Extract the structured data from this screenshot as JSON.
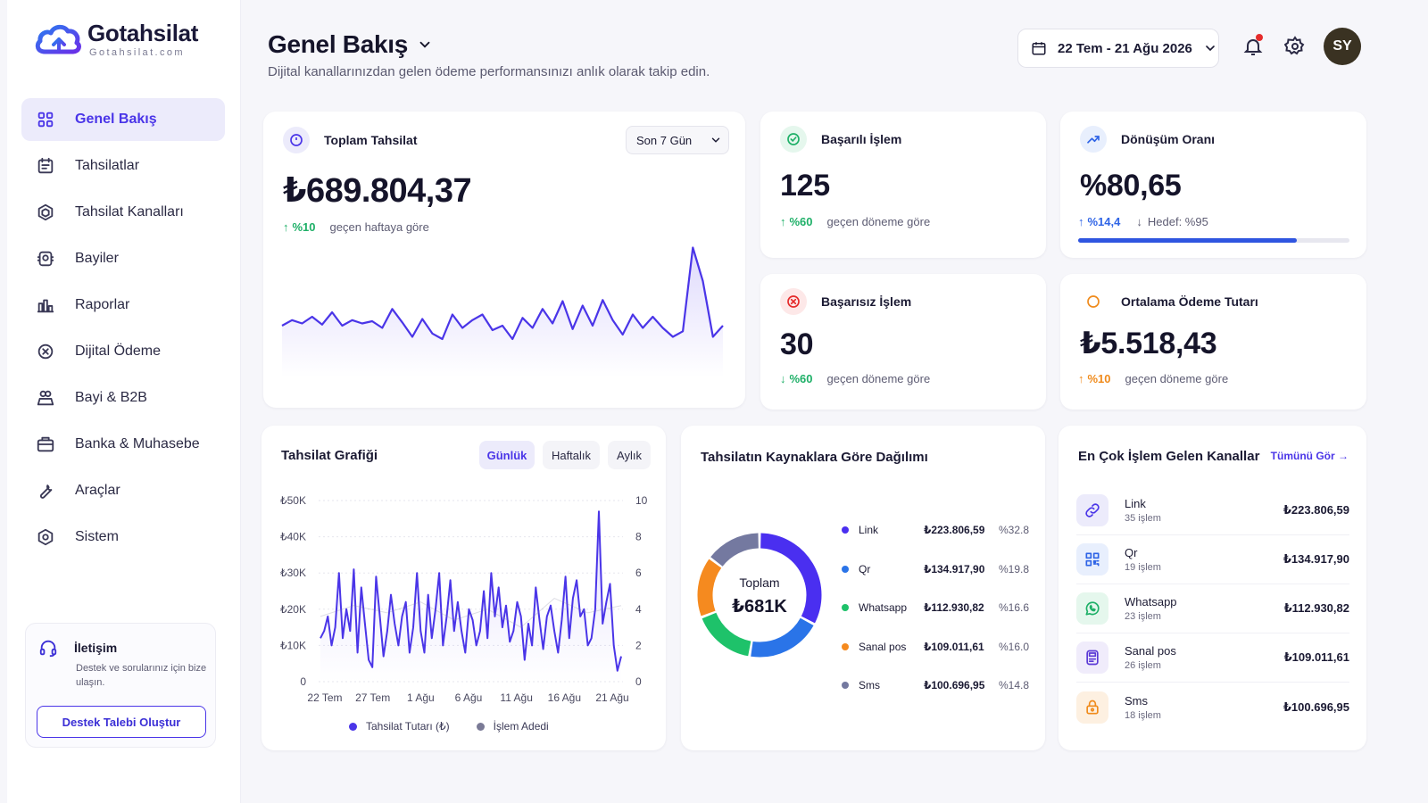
{
  "brand": {
    "name": "Gotahsilat",
    "domain": "Gotahsilat.com"
  },
  "sidebar": {
    "items": [
      {
        "label": "Genel Bakış",
        "icon": "grid-icon",
        "active": true
      },
      {
        "label": "Tahsilatlar",
        "icon": "receipt-icon",
        "active": false
      },
      {
        "label": "Tahsilat Kanalları",
        "icon": "channels-icon",
        "active": false
      },
      {
        "label": "Bayiler",
        "icon": "dealers-icon",
        "active": false
      },
      {
        "label": "Raporlar",
        "icon": "reports-icon",
        "active": false
      },
      {
        "label": "Dijital Ödeme",
        "icon": "digital-payment-icon",
        "active": false
      },
      {
        "label": "Bayi & B2B",
        "icon": "b2b-icon",
        "active": false
      },
      {
        "label": "Banka & Muhasebe",
        "icon": "bank-icon",
        "active": false
      },
      {
        "label": "Araçlar",
        "icon": "wrench-icon",
        "active": false
      },
      {
        "label": "Sistem",
        "icon": "system-icon",
        "active": false
      }
    ],
    "support": {
      "title": "İletişim",
      "desc": "Destek ve sorularınız için bize ulaşın.",
      "button": "Destek Talebi Oluştur"
    }
  },
  "header": {
    "title": "Genel Bakış",
    "subtitle": "Dijital kanallarınızdan gelen ödeme performansınızı anlık olarak takip edin.",
    "date_range": "22 Tem - 21 Ağu 2026",
    "avatar": "SY"
  },
  "total": {
    "title": "Toplam Tahsilat",
    "period": "Son 7 Gün",
    "value": "₺689.804,37",
    "delta": "%10",
    "note": "geçen haftaya göre",
    "spark": [
      40,
      45,
      42,
      48,
      41,
      52,
      40,
      45,
      42,
      44,
      38,
      55,
      43,
      30,
      46,
      33,
      28,
      50,
      38,
      45,
      50,
      36,
      40,
      28,
      47,
      38,
      55,
      42,
      62,
      37,
      58,
      40,
      63,
      45,
      32,
      50,
      38,
      48,
      38,
      30,
      35,
      110,
      80,
      30,
      40
    ]
  },
  "kpis": {
    "success": {
      "title": "Başarılı İşlem",
      "value": "125",
      "delta": "%60",
      "note": "geçen döneme göre",
      "color": "#1fb068"
    },
    "failed": {
      "title": "Başarısız İşlem",
      "value": "30",
      "delta": "%60",
      "note": "geçen döneme göre",
      "color": "#e52b2b"
    },
    "conversion": {
      "title": "Dönüşüm Oranı",
      "value": "%80,65",
      "delta": "%14,4",
      "target": "Hedef: %95",
      "progress": 0.8065,
      "color": "#2f64e6"
    },
    "avg": {
      "title": "Ortalama Ödeme Tutarı",
      "value": "₺5.518,43",
      "delta": "%10",
      "note": "geçen döneme göre",
      "color": "#f08b1c"
    }
  },
  "graph": {
    "title": "Tahsilat Grafiği",
    "tabs": [
      "Günlük",
      "Haftalık",
      "Aylık"
    ],
    "active_tab": "Günlük",
    "legend": [
      "Tahsilat Tutarı (₺)",
      "İşlem Adedi"
    ]
  },
  "chart_data": {
    "type": "line",
    "x_ticks": [
      "22 Tem",
      "27 Tem",
      "1 Ağu",
      "6 Ağu",
      "11 Ağu",
      "16 Ağu",
      "21 Ağu"
    ],
    "y_left_ticks": [
      "₺50K",
      "₺40K",
      "₺30K",
      "₺20K",
      "₺10K",
      "0"
    ],
    "y_right_ticks": [
      "10",
      "8",
      "6",
      "4",
      "2",
      "0"
    ],
    "ylim": [
      0,
      50000
    ],
    "y2lim": [
      0,
      10
    ],
    "series": [
      {
        "name": "Tahsilat Tutarı (₺)",
        "color": "#4a35e8",
        "values": [
          12000,
          14000,
          18000,
          10000,
          15000,
          30000,
          12000,
          20000,
          14000,
          31000,
          8000,
          26000,
          16000,
          6000,
          4000,
          29000,
          18000,
          7000,
          14000,
          24000,
          16000,
          10000,
          18000,
          22000,
          8000,
          15000,
          30000,
          14000,
          8000,
          24000,
          12000,
          20000,
          30000,
          10000,
          18000,
          28000,
          14000,
          22000,
          14000,
          8000,
          20000,
          17000,
          10000,
          14000,
          25000,
          12000,
          30000,
          18000,
          26000,
          15000,
          21000,
          11000,
          14000,
          22000,
          18000,
          6000,
          16000,
          10000,
          26000,
          17000,
          9000,
          18000,
          21000,
          14000,
          8000,
          17000,
          29000,
          12000,
          23000,
          28000,
          18000,
          20000,
          10000,
          12000,
          20000,
          47000,
          16000,
          22000,
          27000,
          10000,
          3000,
          7000
        ]
      },
      {
        "name": "İşlem Adedi",
        "color": "#7a7a96",
        "values": [
          3.6,
          4.2,
          3.8,
          4.4,
          3.4,
          4.0,
          3.0,
          4.6,
          3.8,
          4.2
        ]
      }
    ]
  },
  "donut": {
    "title": "Tahsilatın Kaynaklara Göre Dağılımı",
    "center_label": "Toplam",
    "center_value": "₺681K",
    "items": [
      {
        "name": "Link",
        "amount": "₺223.806,59",
        "pct": "%32.8",
        "share": 32.8,
        "color": "#4a2ff0"
      },
      {
        "name": "Qr",
        "amount": "₺134.917,90",
        "pct": "%19.8",
        "share": 19.8,
        "color": "#2a74e8"
      },
      {
        "name": "Whatsapp",
        "amount": "₺112.930,82",
        "pct": "%16.6",
        "share": 16.6,
        "color": "#1ec26a"
      },
      {
        "name": "Sanal pos",
        "amount": "₺109.011,61",
        "pct": "%16.0",
        "share": 16.0,
        "color": "#f58a1f"
      },
      {
        "name": "Sms",
        "amount": "₺100.696,95",
        "pct": "%14.8",
        "share": 14.8,
        "color": "#7479a0"
      }
    ]
  },
  "channels": {
    "title": "En Çok İşlem Gelen Kanallar",
    "see_all": "Tümünü Gör →",
    "items": [
      {
        "name": "Link",
        "count": "35 işlem",
        "amount": "₺223.806,59",
        "icon": "link-icon",
        "bg": "#ecebfb",
        "color": "#4a35e8"
      },
      {
        "name": "Qr",
        "count": "19 işlem",
        "amount": "₺134.917,90",
        "icon": "qr-icon",
        "bg": "#e8effd",
        "color": "#2f64e6"
      },
      {
        "name": "Whatsapp",
        "count": "23 işlem",
        "amount": "₺112.930,82",
        "icon": "whatsapp-icon",
        "bg": "#e5f7ed",
        "color": "#1fb068"
      },
      {
        "name": "Sanal pos",
        "count": "26 işlem",
        "amount": "₺109.011,61",
        "icon": "pos-icon",
        "bg": "#f0ecfb",
        "color": "#5b3ad6"
      },
      {
        "name": "Sms",
        "count": "18 işlem",
        "amount": "₺100.696,95",
        "icon": "lock-icon",
        "bg": "#fdf0e1",
        "color": "#f08b1c"
      }
    ]
  }
}
